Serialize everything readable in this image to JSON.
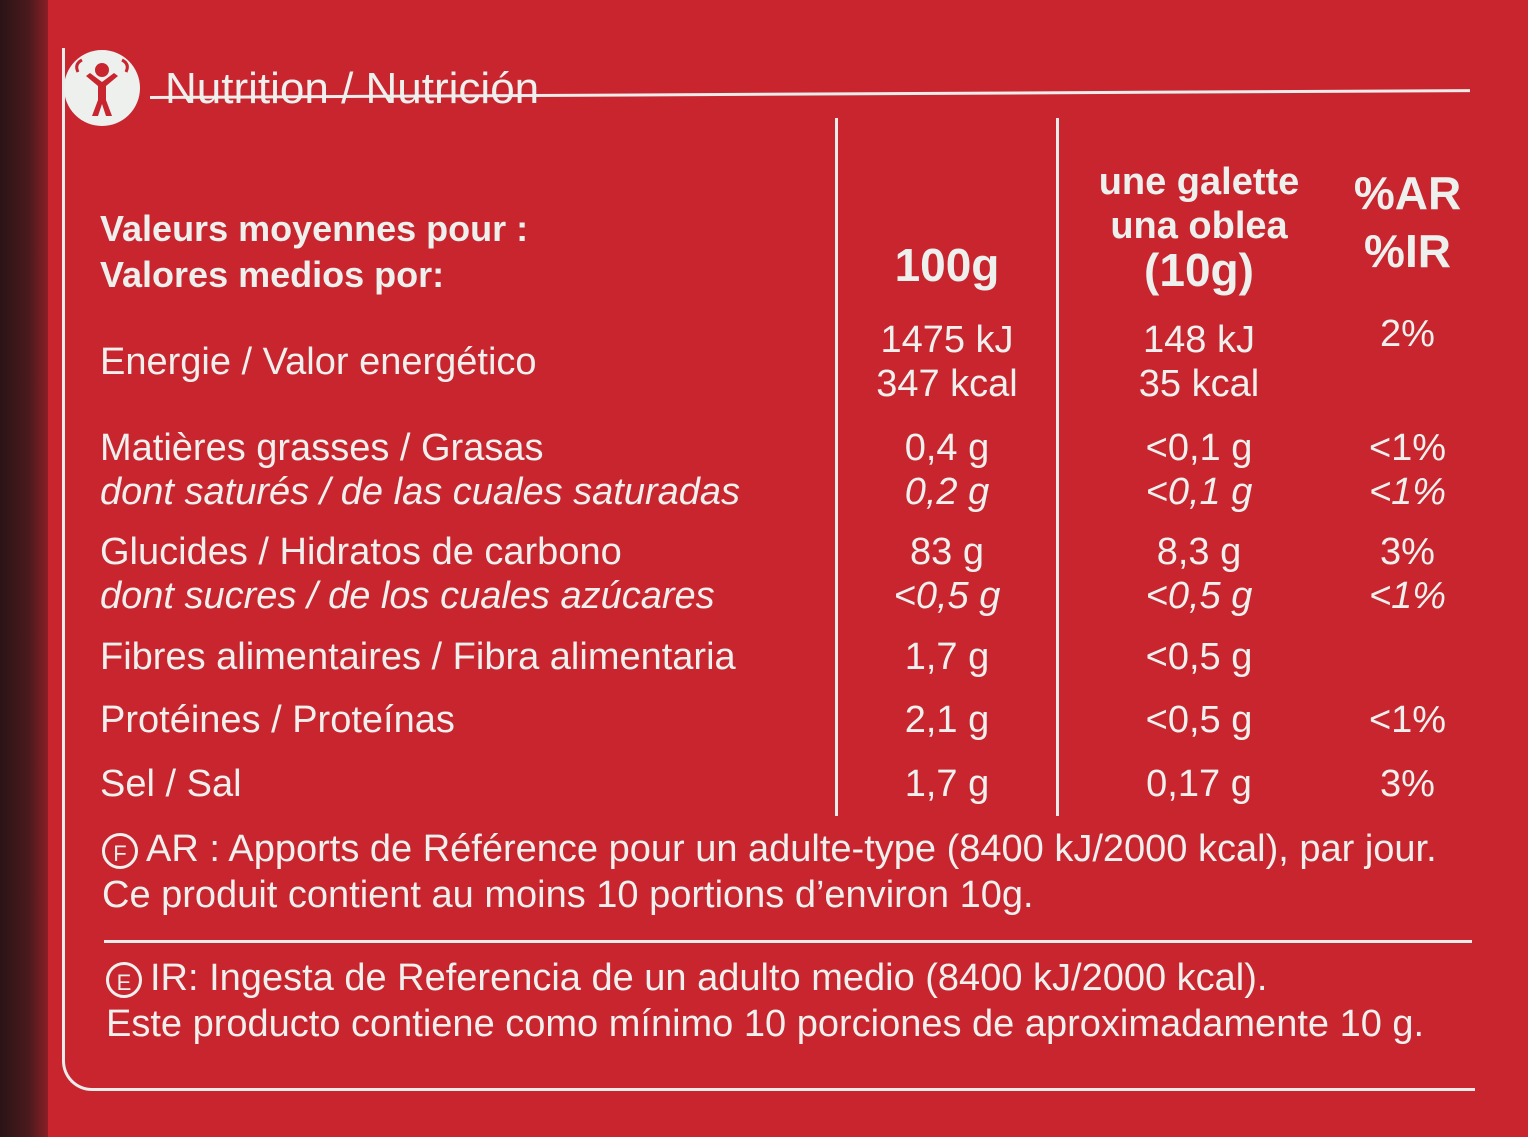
{
  "title": "Nutrition / Nutrición",
  "header": {
    "label_fr": "Valeurs moyennes pour :",
    "label_es": "Valores medios por:",
    "col_100g": "100g",
    "col_portion_fr": "une galette",
    "col_portion_es": "una oblea",
    "col_portion_qty": "(10g)",
    "col_ar": "%AR",
    "col_ir": "%IR"
  },
  "rows": [
    {
      "label": "Energie / Valor energético",
      "v100": "1475 kJ",
      "v100b": "347 kcal",
      "vp": "148 kJ",
      "vpb": "35 kcal",
      "pct": "2%"
    },
    {
      "label": "Matières grasses / Grasas",
      "sub": "dont saturés / de las cuales saturadas",
      "v100": "0,4 g",
      "v100b": "0,2 g",
      "vp": "<0,1 g",
      "vpb": "<0,1 g",
      "pct": "<1%",
      "pctb": "<1%"
    },
    {
      "label": "Glucides / Hidratos de carbono",
      "sub": "dont sucres / de los cuales azúcares",
      "v100": "83 g",
      "v100b": "<0,5 g",
      "vp": "8,3 g",
      "vpb": "<0,5 g",
      "pct": "3%",
      "pctb": "<1%"
    },
    {
      "label": "Fibres alimentaires / Fibra alimentaria",
      "v100": "1,7 g",
      "vp": "<0,5 g",
      "pct": ""
    },
    {
      "label": "Protéines / Proteínas",
      "v100": "2,1 g",
      "vp": "<0,5 g",
      "pct": "<1%"
    },
    {
      "label": "Sel / Sal",
      "v100": "1,7 g",
      "vp": "0,17 g",
      "pct": "3%"
    }
  ],
  "footer": {
    "fr_mark": "F",
    "fr_line1": "AR : Apports de Référence pour un adulte-type (8400 kJ/2000 kcal), par jour.",
    "fr_line2": "Ce produit contient au moins 10 portions d’environ 10g.",
    "es_mark": "E",
    "es_line1": "IR: Ingesta de Referencia de un adulto medio (8400 kJ/2000 kcal).",
    "es_line2": "Este producto contiene como mínimo 10 porciones de aproximadamente 10 g."
  },
  "colors": {
    "background": "#c8252f",
    "text": "#eef0ee"
  },
  "icons": {
    "logo": "person-figure-icon"
  }
}
